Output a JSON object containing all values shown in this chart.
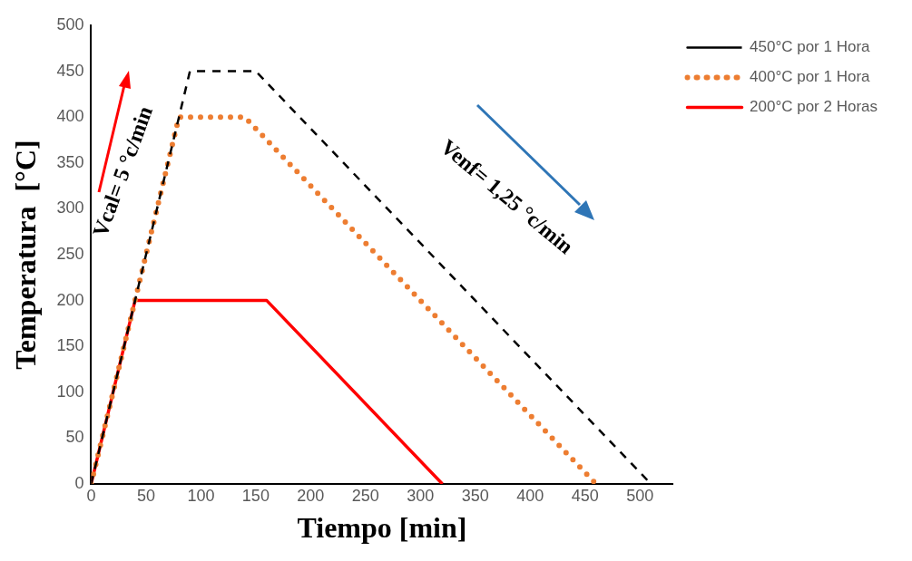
{
  "chart_data": {
    "type": "line",
    "xlabel": "Tiempo [min]",
    "ylabel": "Temperatura  [°C]",
    "xlim": [
      0,
      530
    ],
    "xticks": [
      0,
      50,
      100,
      150,
      200,
      250,
      300,
      350,
      400,
      450,
      500
    ],
    "ylim": [
      0,
      500
    ],
    "yticks": [
      0,
      50,
      100,
      150,
      200,
      250,
      300,
      350,
      400,
      450,
      500
    ],
    "grid": false,
    "legend": "top right",
    "marker": "none",
    "series": [
      {
        "name": "450°C por 1 Hora",
        "color": "#000000",
        "line_style": "dashed",
        "x": [
          0,
          90,
          150,
          510
        ],
        "values": [
          0,
          450,
          450,
          0
        ]
      },
      {
        "name": "400°C por 1 Hora",
        "color": "#ed7d31",
        "line_style": "dotted",
        "x": [
          0,
          80,
          140,
          460
        ],
        "values": [
          0,
          400,
          400,
          0
        ]
      },
      {
        "name": "200°C por 2 Horas",
        "color": "#ff0000",
        "line_style": "solid",
        "x": [
          0,
          40,
          160,
          320
        ],
        "values": [
          0,
          200,
          200,
          0
        ]
      }
    ],
    "annotations": [
      "Vcal= 5 °c/min",
      "Venf= 1,25 °c/min"
    ]
  }
}
